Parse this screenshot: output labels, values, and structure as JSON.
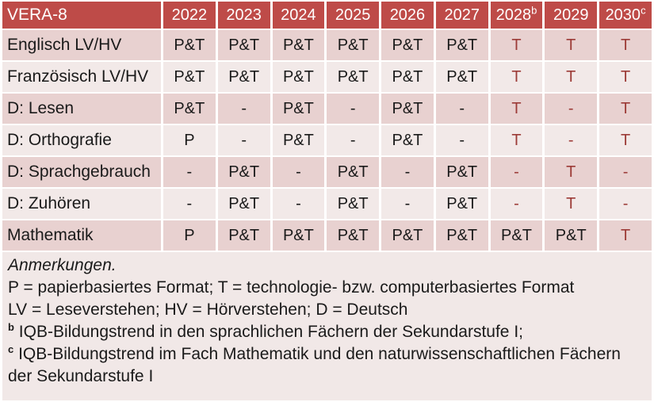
{
  "colors": {
    "header_bg": "#BE4B48",
    "row_dark": "#E8D1D0",
    "row_light": "#F2E9E8",
    "accent_text": "#9C3B37",
    "text": "#1A1A1A",
    "header_text": "#FFFFFF",
    "notes_bg": "#F1E8E7"
  },
  "table": {
    "title": "VERA-8",
    "years": [
      {
        "label": "2022",
        "sup": ""
      },
      {
        "label": "2023",
        "sup": ""
      },
      {
        "label": "2024",
        "sup": ""
      },
      {
        "label": "2025",
        "sup": ""
      },
      {
        "label": "2026",
        "sup": ""
      },
      {
        "label": "2027",
        "sup": ""
      },
      {
        "label": "2028",
        "sup": "b"
      },
      {
        "label": "2029",
        "sup": ""
      },
      {
        "label": "2030",
        "sup": "c"
      }
    ],
    "rows": [
      {
        "label": "Englisch LV/HV",
        "cells": [
          {
            "v": "P&T",
            "red": false
          },
          {
            "v": "P&T",
            "red": false
          },
          {
            "v": "P&T",
            "red": false
          },
          {
            "v": "P&T",
            "red": false
          },
          {
            "v": "P&T",
            "red": false
          },
          {
            "v": "P&T",
            "red": false
          },
          {
            "v": "T",
            "red": true
          },
          {
            "v": "T",
            "red": true
          },
          {
            "v": "T",
            "red": true
          }
        ]
      },
      {
        "label": "Französisch LV/HV",
        "cells": [
          {
            "v": "P&T",
            "red": false
          },
          {
            "v": "P&T",
            "red": false
          },
          {
            "v": "P&T",
            "red": false
          },
          {
            "v": "P&T",
            "red": false
          },
          {
            "v": "P&T",
            "red": false
          },
          {
            "v": "P&T",
            "red": false
          },
          {
            "v": "T",
            "red": true
          },
          {
            "v": "T",
            "red": true
          },
          {
            "v": "T",
            "red": true
          }
        ]
      },
      {
        "label": "D: Lesen",
        "cells": [
          {
            "v": "P&T",
            "red": false
          },
          {
            "v": "-",
            "red": false
          },
          {
            "v": "P&T",
            "red": false
          },
          {
            "v": "-",
            "red": false
          },
          {
            "v": "P&T",
            "red": false
          },
          {
            "v": "-",
            "red": false
          },
          {
            "v": "T",
            "red": true
          },
          {
            "v": "-",
            "red": true
          },
          {
            "v": "T",
            "red": true
          }
        ]
      },
      {
        "label": "D: Orthografie",
        "cells": [
          {
            "v": "P",
            "red": false
          },
          {
            "v": "-",
            "red": false
          },
          {
            "v": "P&T",
            "red": false
          },
          {
            "v": "-",
            "red": false
          },
          {
            "v": "P&T",
            "red": false
          },
          {
            "v": "-",
            "red": false
          },
          {
            "v": "T",
            "red": true
          },
          {
            "v": "-",
            "red": true
          },
          {
            "v": "T",
            "red": true
          }
        ]
      },
      {
        "label": "D: Sprachgebrauch",
        "cells": [
          {
            "v": "-",
            "red": false
          },
          {
            "v": "P&T",
            "red": false
          },
          {
            "v": "-",
            "red": false
          },
          {
            "v": "P&T",
            "red": false
          },
          {
            "v": "-",
            "red": false
          },
          {
            "v": "P&T",
            "red": false
          },
          {
            "v": "-",
            "red": true
          },
          {
            "v": "T",
            "red": true
          },
          {
            "v": "-",
            "red": true
          }
        ]
      },
      {
        "label": "D: Zuhören",
        "cells": [
          {
            "v": "-",
            "red": false
          },
          {
            "v": "P&T",
            "red": false
          },
          {
            "v": "-",
            "red": false
          },
          {
            "v": "P&T",
            "red": false
          },
          {
            "v": "-",
            "red": false
          },
          {
            "v": "P&T",
            "red": false
          },
          {
            "v": "-",
            "red": true
          },
          {
            "v": "T",
            "red": true
          },
          {
            "v": "-",
            "red": true
          }
        ]
      },
      {
        "label": "Mathematik",
        "cells": [
          {
            "v": "P",
            "red": false
          },
          {
            "v": "P&T",
            "red": false
          },
          {
            "v": "P&T",
            "red": false
          },
          {
            "v": "P&T",
            "red": false
          },
          {
            "v": "P&T",
            "red": false
          },
          {
            "v": "P&T",
            "red": false
          },
          {
            "v": "P&T",
            "red": false
          },
          {
            "v": "P&T",
            "red": false
          },
          {
            "v": "T",
            "red": true
          }
        ]
      }
    ]
  },
  "notes": {
    "heading": "Anmerkungen.",
    "line_formats": "P = papierbasiertes Format; T = technologie- bzw. computerbasiertes Format",
    "line_abbrev": "LV = Leseverstehen; HV = Hörverstehen; D = Deutsch",
    "note_b_sup": "b",
    "note_b_text": "IQB-Bildungstrend in den sprachlichen Fächern der Sekundarstufe I;",
    "note_c_sup": "c",
    "note_c_text": "IQB-Bildungstrend im Fach Mathematik und den naturwissenschaftlichen Fächern der Sekundarstufe I"
  }
}
